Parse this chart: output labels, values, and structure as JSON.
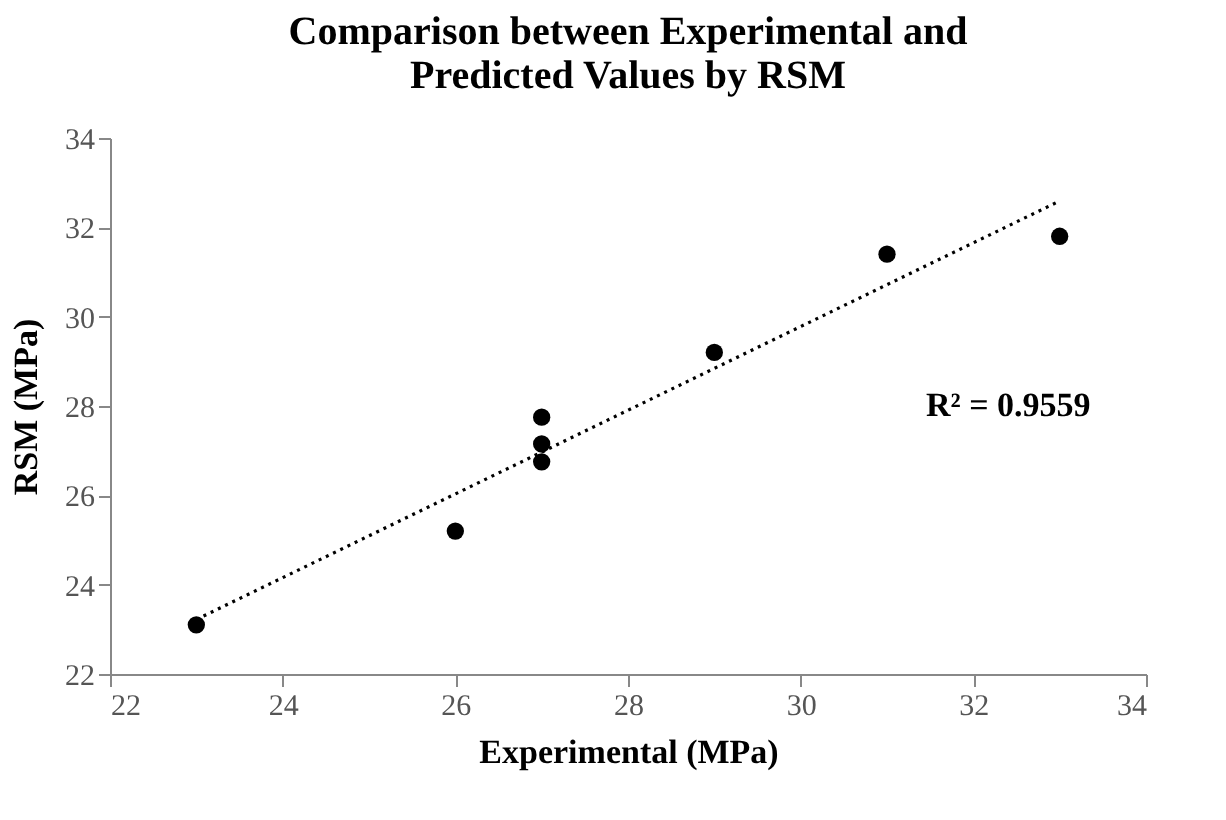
{
  "chart_data": {
    "type": "scatter",
    "title": "Comparison between Experimental and Predicted Values by RSM",
    "xlabel": "Experimental (MPa)",
    "ylabel": "RSM (MPa)",
    "xlim": [
      22,
      34
    ],
    "xticks": [
      22,
      24,
      26,
      28,
      30,
      32,
      34
    ],
    "ylim": [
      22,
      34
    ],
    "yticks": [
      22,
      24,
      26,
      28,
      30,
      32,
      34
    ],
    "grid": false,
    "marker": "circle",
    "series": [
      {
        "color": "#000000",
        "x": [
          23,
          26,
          27,
          27,
          27,
          29,
          31,
          33
        ],
        "values": [
          23.1,
          25.2,
          27.75,
          27.15,
          26.75,
          29.2,
          31.4,
          31.8
        ]
      },
      {
        "type": "line",
        "line_style": "dotted",
        "marker": "none",
        "color": "#000000",
        "x": [
          23,
          33
        ],
        "values": [
          23.22,
          32.59
        ]
      }
    ],
    "annotations": [
      "R² = 0.9559"
    ]
  }
}
